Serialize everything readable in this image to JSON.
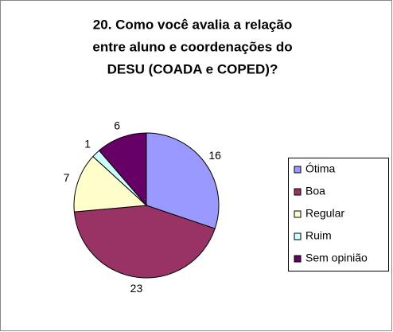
{
  "chart_data": {
    "type": "pie",
    "title": [
      "20. Como você avalia a relação",
      "entre aluno e coordenações do",
      "DESU (COADA e COPED)?"
    ],
    "categories": [
      "Ótima",
      "Boa",
      "Regular",
      "Ruim",
      "Sem opinião"
    ],
    "values": [
      16,
      23,
      7,
      1,
      6
    ],
    "colors": [
      "#9999ff",
      "#993366",
      "#ffffcc",
      "#ccffff",
      "#660066"
    ],
    "legend": "right"
  }
}
